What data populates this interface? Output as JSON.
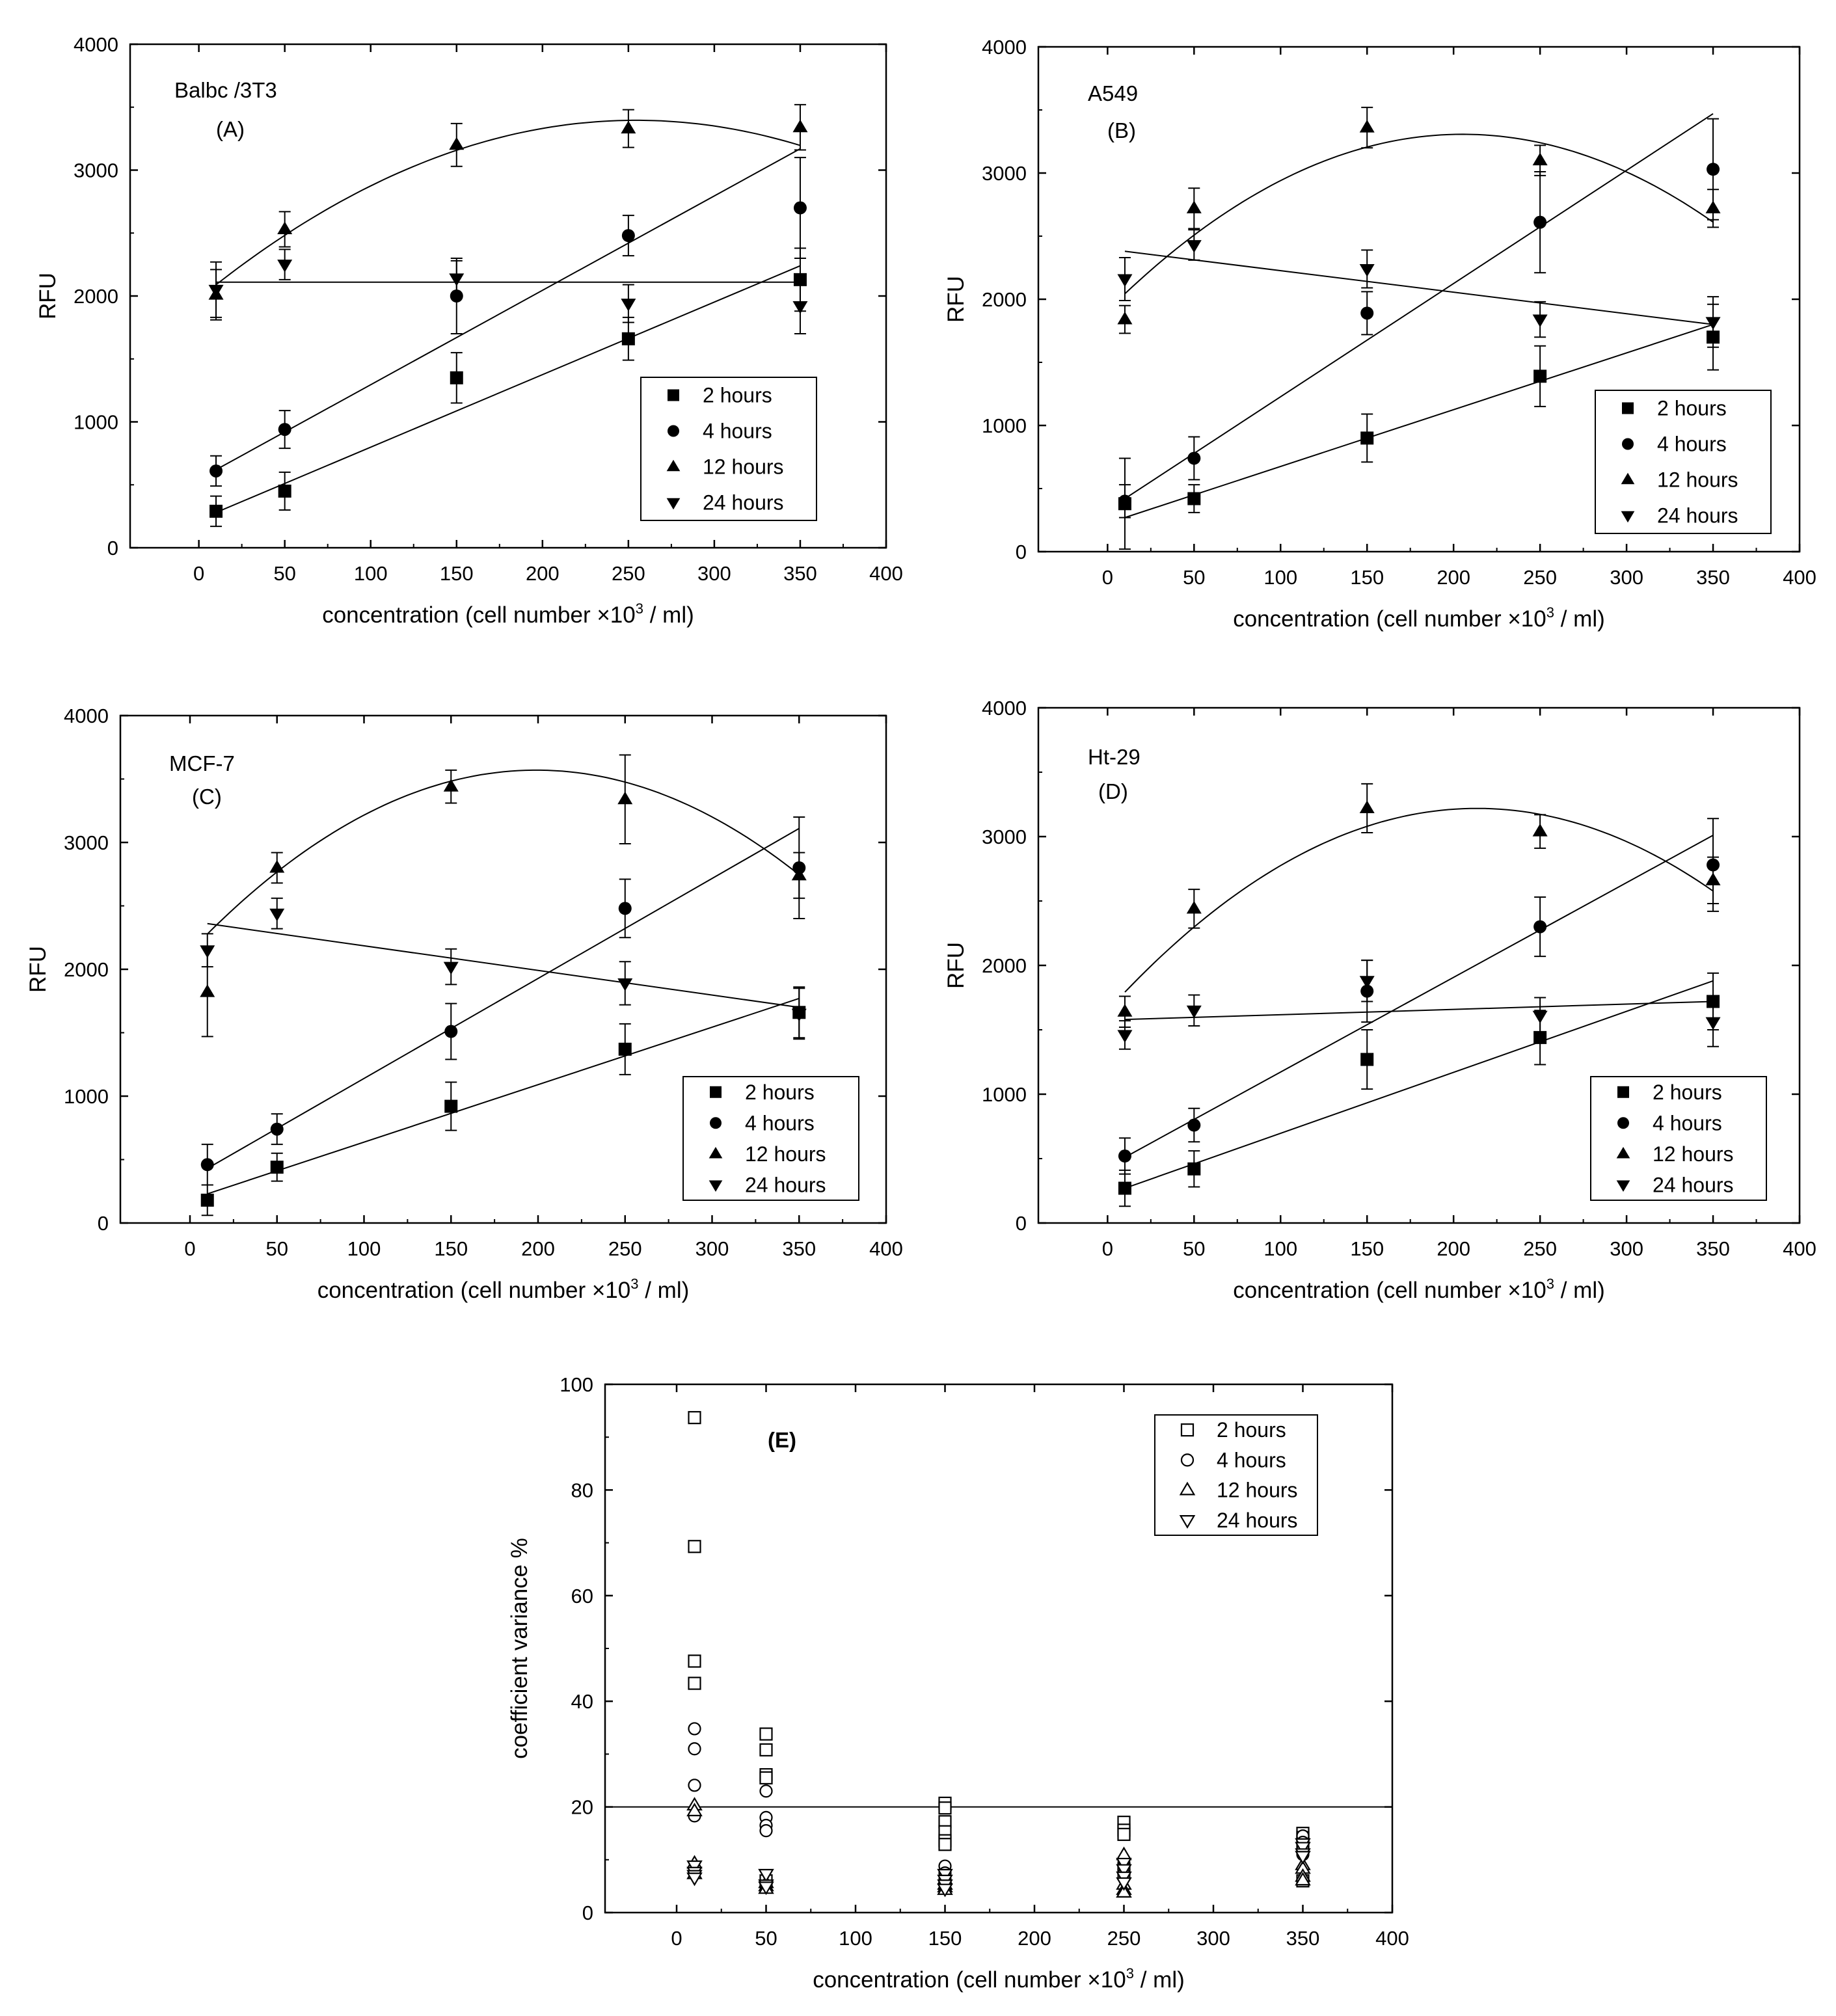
{
  "figure": {
    "xlabel_main": "concentration (cell number ×10",
    "xlabel_exp": "3",
    "xlabel_tail": " / ml)"
  },
  "chart_data": [
    {
      "id": "A",
      "type": "scatter",
      "title": "Balbc /3T3",
      "panel_label": "(A)",
      "xlabel": "concentration (cell number ×10^3 / ml)",
      "ylabel": "RFU",
      "xlim": [
        -40,
        400
      ],
      "ylim": [
        0,
        4000
      ],
      "xticks": [
        0,
        50,
        100,
        150,
        200,
        250,
        300,
        350,
        400
      ],
      "yticks": [
        0,
        1000,
        2000,
        3000,
        4000
      ],
      "legend_position": "lower-right",
      "x": [
        10,
        50,
        150,
        250,
        350
      ],
      "series": [
        {
          "name": "2 hours",
          "marker": "square",
          "values": [
            290,
            450,
            1350,
            1660,
            2130
          ],
          "errors": [
            120,
            150,
            200,
            170,
            250
          ],
          "fit": {
            "kind": "linear",
            "x": [
              10,
              350
            ],
            "y": [
              280,
              2240
            ]
          }
        },
        {
          "name": "4 hours",
          "marker": "circle",
          "values": [
            610,
            940,
            2000,
            2480,
            2700
          ],
          "errors": [
            120,
            150,
            300,
            160,
            400
          ],
          "fit": {
            "kind": "linear",
            "x": [
              10,
              350
            ],
            "y": [
              620,
              3170
            ]
          }
        },
        {
          "name": "12 hours",
          "marker": "triangle-up",
          "values": [
            2010,
            2530,
            3200,
            3330,
            3340
          ],
          "errors": [
            200,
            140,
            170,
            150,
            180
          ],
          "fit": {
            "kind": "quadratic",
            "x": [
              10,
              50,
              150,
              250,
              350
            ],
            "y": [
              2100,
              2470,
              3150,
              3410,
              3190
            ]
          }
        },
        {
          "name": "24 hours",
          "marker": "triangle-down",
          "values": [
            2050,
            2250,
            2140,
            1940,
            1920
          ],
          "errors": [
            220,
            120,
            140,
            150,
            220
          ],
          "fit": {
            "kind": "linear",
            "x": [
              10,
              350
            ],
            "y": [
              2110,
              2110
            ]
          }
        }
      ]
    },
    {
      "id": "B",
      "type": "scatter",
      "title": "A549",
      "panel_label": "(B)",
      "xlabel": "concentration (cell number ×10^3 / ml)",
      "ylabel": "RFU",
      "xlim": [
        -40,
        400
      ],
      "ylim": [
        0,
        4000
      ],
      "xticks": [
        0,
        50,
        100,
        150,
        200,
        250,
        300,
        350,
        400
      ],
      "yticks": [
        0,
        1000,
        2000,
        3000,
        4000
      ],
      "legend_position": "lower-right",
      "x": [
        10,
        50,
        150,
        250,
        350
      ],
      "series": [
        {
          "name": "2 hours",
          "marker": "square",
          "values": [
            380,
            420,
            900,
            1390,
            1700
          ],
          "errors": [
            360,
            110,
            190,
            240,
            260
          ],
          "fit": {
            "kind": "linear",
            "x": [
              10,
              350
            ],
            "y": [
              270,
              1800
            ]
          }
        },
        {
          "name": "4 hours",
          "marker": "circle",
          "values": [
            400,
            740,
            1890,
            2610,
            3030
          ],
          "errors": [
            130,
            170,
            170,
            400,
            400
          ],
          "fit": {
            "kind": "linear",
            "x": [
              10,
              350
            ],
            "y": [
              420,
              3470
            ]
          }
        },
        {
          "name": "12 hours",
          "marker": "triangle-up",
          "values": [
            1840,
            2720,
            3360,
            3100,
            2720
          ],
          "errors": [
            110,
            160,
            160,
            120,
            150
          ],
          "fit": {
            "kind": "quadratic",
            "x": [
              10,
              50,
              150,
              250,
              350
            ],
            "y": [
              1990,
              2580,
              3210,
              3200,
              2630
            ]
          }
        },
        {
          "name": "24 hours",
          "marker": "triangle-down",
          "values": [
            2160,
            2430,
            2240,
            1840,
            1820
          ],
          "errors": [
            170,
            120,
            150,
            140,
            200
          ],
          "fit": {
            "kind": "linear",
            "x": [
              10,
              350
            ],
            "y": [
              2380,
              1800
            ]
          }
        }
      ]
    },
    {
      "id": "C",
      "type": "scatter",
      "title": "MCF-7",
      "panel_label": "(C)",
      "xlabel": "concentration (cell number ×10^3 / ml)",
      "ylabel": "RFU",
      "xlim": [
        -40,
        400
      ],
      "ylim": [
        0,
        4000
      ],
      "xticks": [
        0,
        50,
        100,
        150,
        200,
        250,
        300,
        350,
        400
      ],
      "yticks": [
        0,
        1000,
        2000,
        3000,
        4000
      ],
      "legend_position": "lower-right",
      "x": [
        10,
        50,
        150,
        250,
        350
      ],
      "series": [
        {
          "name": "2 hours",
          "marker": "square",
          "values": [
            180,
            440,
            920,
            1370,
            1660
          ],
          "errors": [
            120,
            110,
            190,
            200,
            200
          ],
          "fit": {
            "kind": "linear",
            "x": [
              10,
              350
            ],
            "y": [
              230,
              1770
            ]
          }
        },
        {
          "name": "4 hours",
          "marker": "circle",
          "values": [
            460,
            740,
            1510,
            2480,
            2800
          ],
          "errors": [
            160,
            120,
            220,
            230,
            400
          ],
          "fit": {
            "kind": "linear",
            "x": [
              10,
              350
            ],
            "y": [
              430,
              3110
            ]
          }
        },
        {
          "name": "12 hours",
          "marker": "triangle-up",
          "values": [
            1820,
            2800,
            3440,
            3340,
            2740
          ],
          "errors": [
            350,
            120,
            130,
            350,
            180
          ],
          "fit": {
            "kind": "quadratic",
            "x": [
              10,
              50,
              150,
              250,
              350
            ],
            "y": [
              2250,
              2810,
              3470,
              3470,
              2750
            ]
          }
        },
        {
          "name": "24 hours",
          "marker": "triangle-down",
          "values": [
            2150,
            2440,
            2020,
            1890,
            1650
          ],
          "errors": [
            130,
            120,
            140,
            170,
            200
          ],
          "fit": {
            "kind": "linear",
            "x": [
              10,
              350
            ],
            "y": [
              2360,
              1700
            ]
          }
        }
      ]
    },
    {
      "id": "D",
      "type": "scatter",
      "title": "Ht-29",
      "panel_label": "(D)",
      "xlabel": "concentration (cell number ×10^3 / ml)",
      "ylabel": "RFU",
      "xlim": [
        -40,
        400
      ],
      "ylim": [
        0,
        4000
      ],
      "xticks": [
        0,
        50,
        100,
        150,
        200,
        250,
        300,
        350,
        400
      ],
      "yticks": [
        0,
        1000,
        2000,
        3000,
        4000
      ],
      "legend_position": "lower-right",
      "x": [
        10,
        50,
        150,
        250,
        350
      ],
      "series": [
        {
          "name": "2 hours",
          "marker": "square",
          "values": [
            270,
            420,
            1270,
            1440,
            1720
          ],
          "errors": [
            140,
            140,
            230,
            210,
            220
          ],
          "fit": {
            "kind": "linear",
            "x": [
              10,
              350
            ],
            "y": [
              270,
              1880
            ]
          }
        },
        {
          "name": "4 hours",
          "marker": "circle",
          "values": [
            520,
            760,
            1800,
            2300,
            2780
          ],
          "errors": [
            140,
            130,
            240,
            230,
            360
          ],
          "fit": {
            "kind": "linear",
            "x": [
              10,
              350
            ],
            "y": [
              510,
              3010
            ]
          }
        },
        {
          "name": "12 hours",
          "marker": "triangle-up",
          "values": [
            1640,
            2440,
            3220,
            3040,
            2660
          ],
          "errors": [
            120,
            150,
            190,
            130,
            180
          ],
          "fit": {
            "kind": "quadratic",
            "x": [
              10,
              50,
              150,
              250,
              350
            ],
            "y": [
              1700,
              2430,
              3060,
              3130,
              2600
            ]
          }
        },
        {
          "name": "24 hours",
          "marker": "triangle-down",
          "values": [
            1460,
            1650,
            1880,
            1610,
            1560
          ],
          "errors": [
            110,
            120,
            160,
            140,
            190
          ],
          "fit": {
            "kind": "linear",
            "x": [
              10,
              350
            ],
            "y": [
              1580,
              1720
            ]
          }
        }
      ]
    },
    {
      "id": "E",
      "type": "scatter",
      "title": "",
      "panel_label": "(E)",
      "xlabel": "concentration (cell number ×10^3 / ml)",
      "ylabel": "coefficient variance %",
      "xlim": [
        -40,
        400
      ],
      "ylim": [
        0,
        100
      ],
      "xticks": [
        0,
        50,
        100,
        150,
        200,
        250,
        300,
        350,
        400
      ],
      "yticks": [
        0,
        20,
        40,
        60,
        80,
        100
      ],
      "legend_position": "top-right",
      "hline": 20,
      "series": [
        {
          "name": "2 hours",
          "marker": "square-open",
          "x": [
            10,
            10,
            10,
            10,
            50,
            50,
            50,
            50,
            50,
            150,
            150,
            150,
            150,
            150,
            150,
            250,
            250,
            250,
            250,
            350,
            350,
            350,
            350
          ],
          "values": [
            93.7,
            69.3,
            47.6,
            43.4,
            33.8,
            30.8,
            26.1,
            25.5,
            6.0,
            20.7,
            19.8,
            17.2,
            15.3,
            13.6,
            12.9,
            17.1,
            15.6,
            14.8,
            8.3,
            15.0,
            14.2,
            13.1,
            6.0
          ]
        },
        {
          "name": "4 hours",
          "marker": "circle-open",
          "x": [
            10,
            10,
            10,
            10,
            50,
            50,
            50,
            50,
            150,
            150,
            150,
            150,
            250,
            250,
            250,
            250,
            350,
            350,
            350,
            350
          ],
          "values": [
            34.8,
            31.0,
            24.1,
            18.3,
            23.0,
            18.0,
            16.5,
            15.5,
            8.8,
            7.5,
            6.3,
            5.8,
            10.0,
            8.1,
            7.3,
            6.7,
            14.5,
            13.3,
            12.0,
            11.0
          ]
        },
        {
          "name": "12 hours",
          "marker": "triangle-open-up",
          "x": [
            10,
            10,
            10,
            10,
            50,
            50,
            50,
            150,
            150,
            150,
            150,
            250,
            250,
            250,
            250,
            350,
            350,
            350,
            350
          ],
          "values": [
            20.3,
            19.2,
            9.3,
            7.3,
            5.6,
            5.0,
            4.5,
            6.3,
            5.3,
            4.8,
            4.3,
            10.9,
            5.3,
            4.3,
            3.8,
            9.0,
            8.3,
            6.8,
            6.1
          ]
        },
        {
          "name": "24 hours",
          "marker": "triangle-open-down",
          "x": [
            10,
            10,
            10,
            10,
            50,
            50,
            50,
            150,
            150,
            150,
            150,
            250,
            250,
            250,
            250,
            350,
            350,
            350,
            350
          ],
          "values": [
            8.9,
            7.7,
            7.1,
            6.6,
            7.3,
            5.3,
            4.9,
            7.3,
            6.2,
            5.3,
            4.5,
            9.4,
            8.2,
            6.8,
            5.7,
            13.1,
            12.4,
            11.2,
            10.7
          ]
        }
      ]
    }
  ]
}
